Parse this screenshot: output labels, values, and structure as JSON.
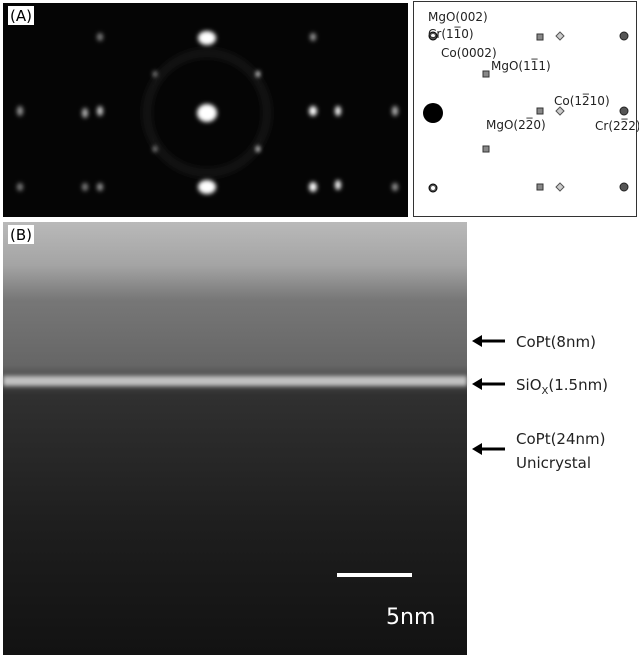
{
  "panel_a": {
    "label": "(A)",
    "spot_labels": [
      "MgO(002)",
      "Cr(11̅0)",
      "Co(0002)",
      "MgO(11̅1)",
      "Co(12̅10)",
      "MgO(22̅0)",
      "Cr(22̅2)"
    ]
  },
  "panel_b": {
    "label": "(B)",
    "annotations": [
      {
        "text": "CoPt(8nm)"
      },
      {
        "text": "SiO",
        "subscript": "X",
        "suffix": "(1.5nm)"
      },
      {
        "text": "CoPt(24nm)",
        "line2": "Unicrystal"
      }
    ],
    "scale_bar": "5nm"
  }
}
